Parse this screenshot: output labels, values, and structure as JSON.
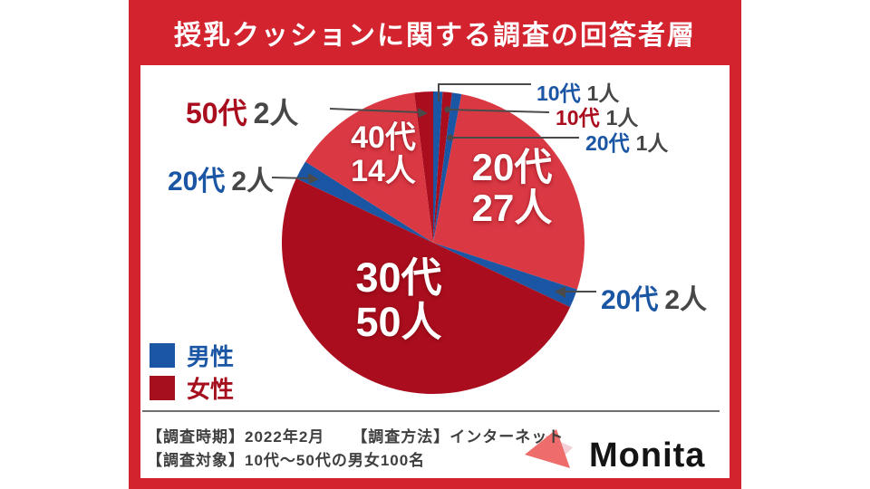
{
  "title": "授乳クッションに関する調査の回答者層",
  "colors": {
    "frame": "#d2232e",
    "male": "#1b56a5",
    "female_dark": "#aa0e1e",
    "female_light": "#da3944",
    "count_text": "#474747",
    "leader": "#4a4a4a",
    "logo_coral": "#ee6c6c",
    "logo_pink": "#f3d0d6"
  },
  "chart_data": {
    "type": "pie",
    "title": "授乳クッションに関する調査の回答者層",
    "unit": "人",
    "total": 100,
    "start_angle_deg": 0,
    "direction": "clockwise",
    "slices": [
      {
        "label": "10代",
        "gender": "男性",
        "value": 1,
        "color": "#1b56a5"
      },
      {
        "label": "10代",
        "gender": "女性",
        "value": 1,
        "color": "#aa0e1e"
      },
      {
        "label": "20代",
        "gender": "男性",
        "value": 1,
        "color": "#1b56a5"
      },
      {
        "label": "20代",
        "gender": "女性",
        "value": 27,
        "color": "#da3944"
      },
      {
        "label": "20代",
        "gender": "男性",
        "value": 2,
        "color": "#1b56a5"
      },
      {
        "label": "30代",
        "gender": "女性",
        "value": 50,
        "color": "#aa0e1e"
      },
      {
        "label": "20代",
        "gender": "男性",
        "value": 2,
        "color": "#1b56a5"
      },
      {
        "label": "40代",
        "gender": "女性",
        "value": 14,
        "color": "#da3944"
      },
      {
        "label": "50代",
        "gender": "女性",
        "value": 2,
        "color": "#aa0e1e"
      }
    ],
    "legend_position": "bottom-left",
    "legend": [
      {
        "label": "男性",
        "color": "#1b56a5"
      },
      {
        "label": "女性",
        "color": "#a50f1e"
      }
    ]
  },
  "callouts": {
    "t1": {
      "age": "10代",
      "count": "1人",
      "color": "#1b56a5"
    },
    "t2": {
      "age": "10代",
      "count": "1人",
      "color": "#aa0e1e"
    },
    "t3": {
      "age": "20代",
      "count": "1人",
      "color": "#1b56a5"
    },
    "l1": {
      "age": "50代",
      "count": "2人",
      "color": "#aa0e1e"
    },
    "l2": {
      "age": "20代",
      "count": "2人",
      "color": "#1b56a5"
    },
    "r1": {
      "age": "20代",
      "count": "2人",
      "color": "#1b56a5"
    }
  },
  "inside_labels": {
    "s20": {
      "age": "20代",
      "count": "27人"
    },
    "s30": {
      "age": "30代",
      "count": "50人"
    },
    "s40": {
      "age": "40代",
      "count": "14人"
    }
  },
  "legend": {
    "male": "男性",
    "female": "女性"
  },
  "footer": {
    "line1a": "【調査時期】2022年2月",
    "line1b": "【調査方法】インターネット",
    "line2": "【調査対象】10代〜50代の男女100名"
  },
  "logo": {
    "text": "Monita"
  }
}
